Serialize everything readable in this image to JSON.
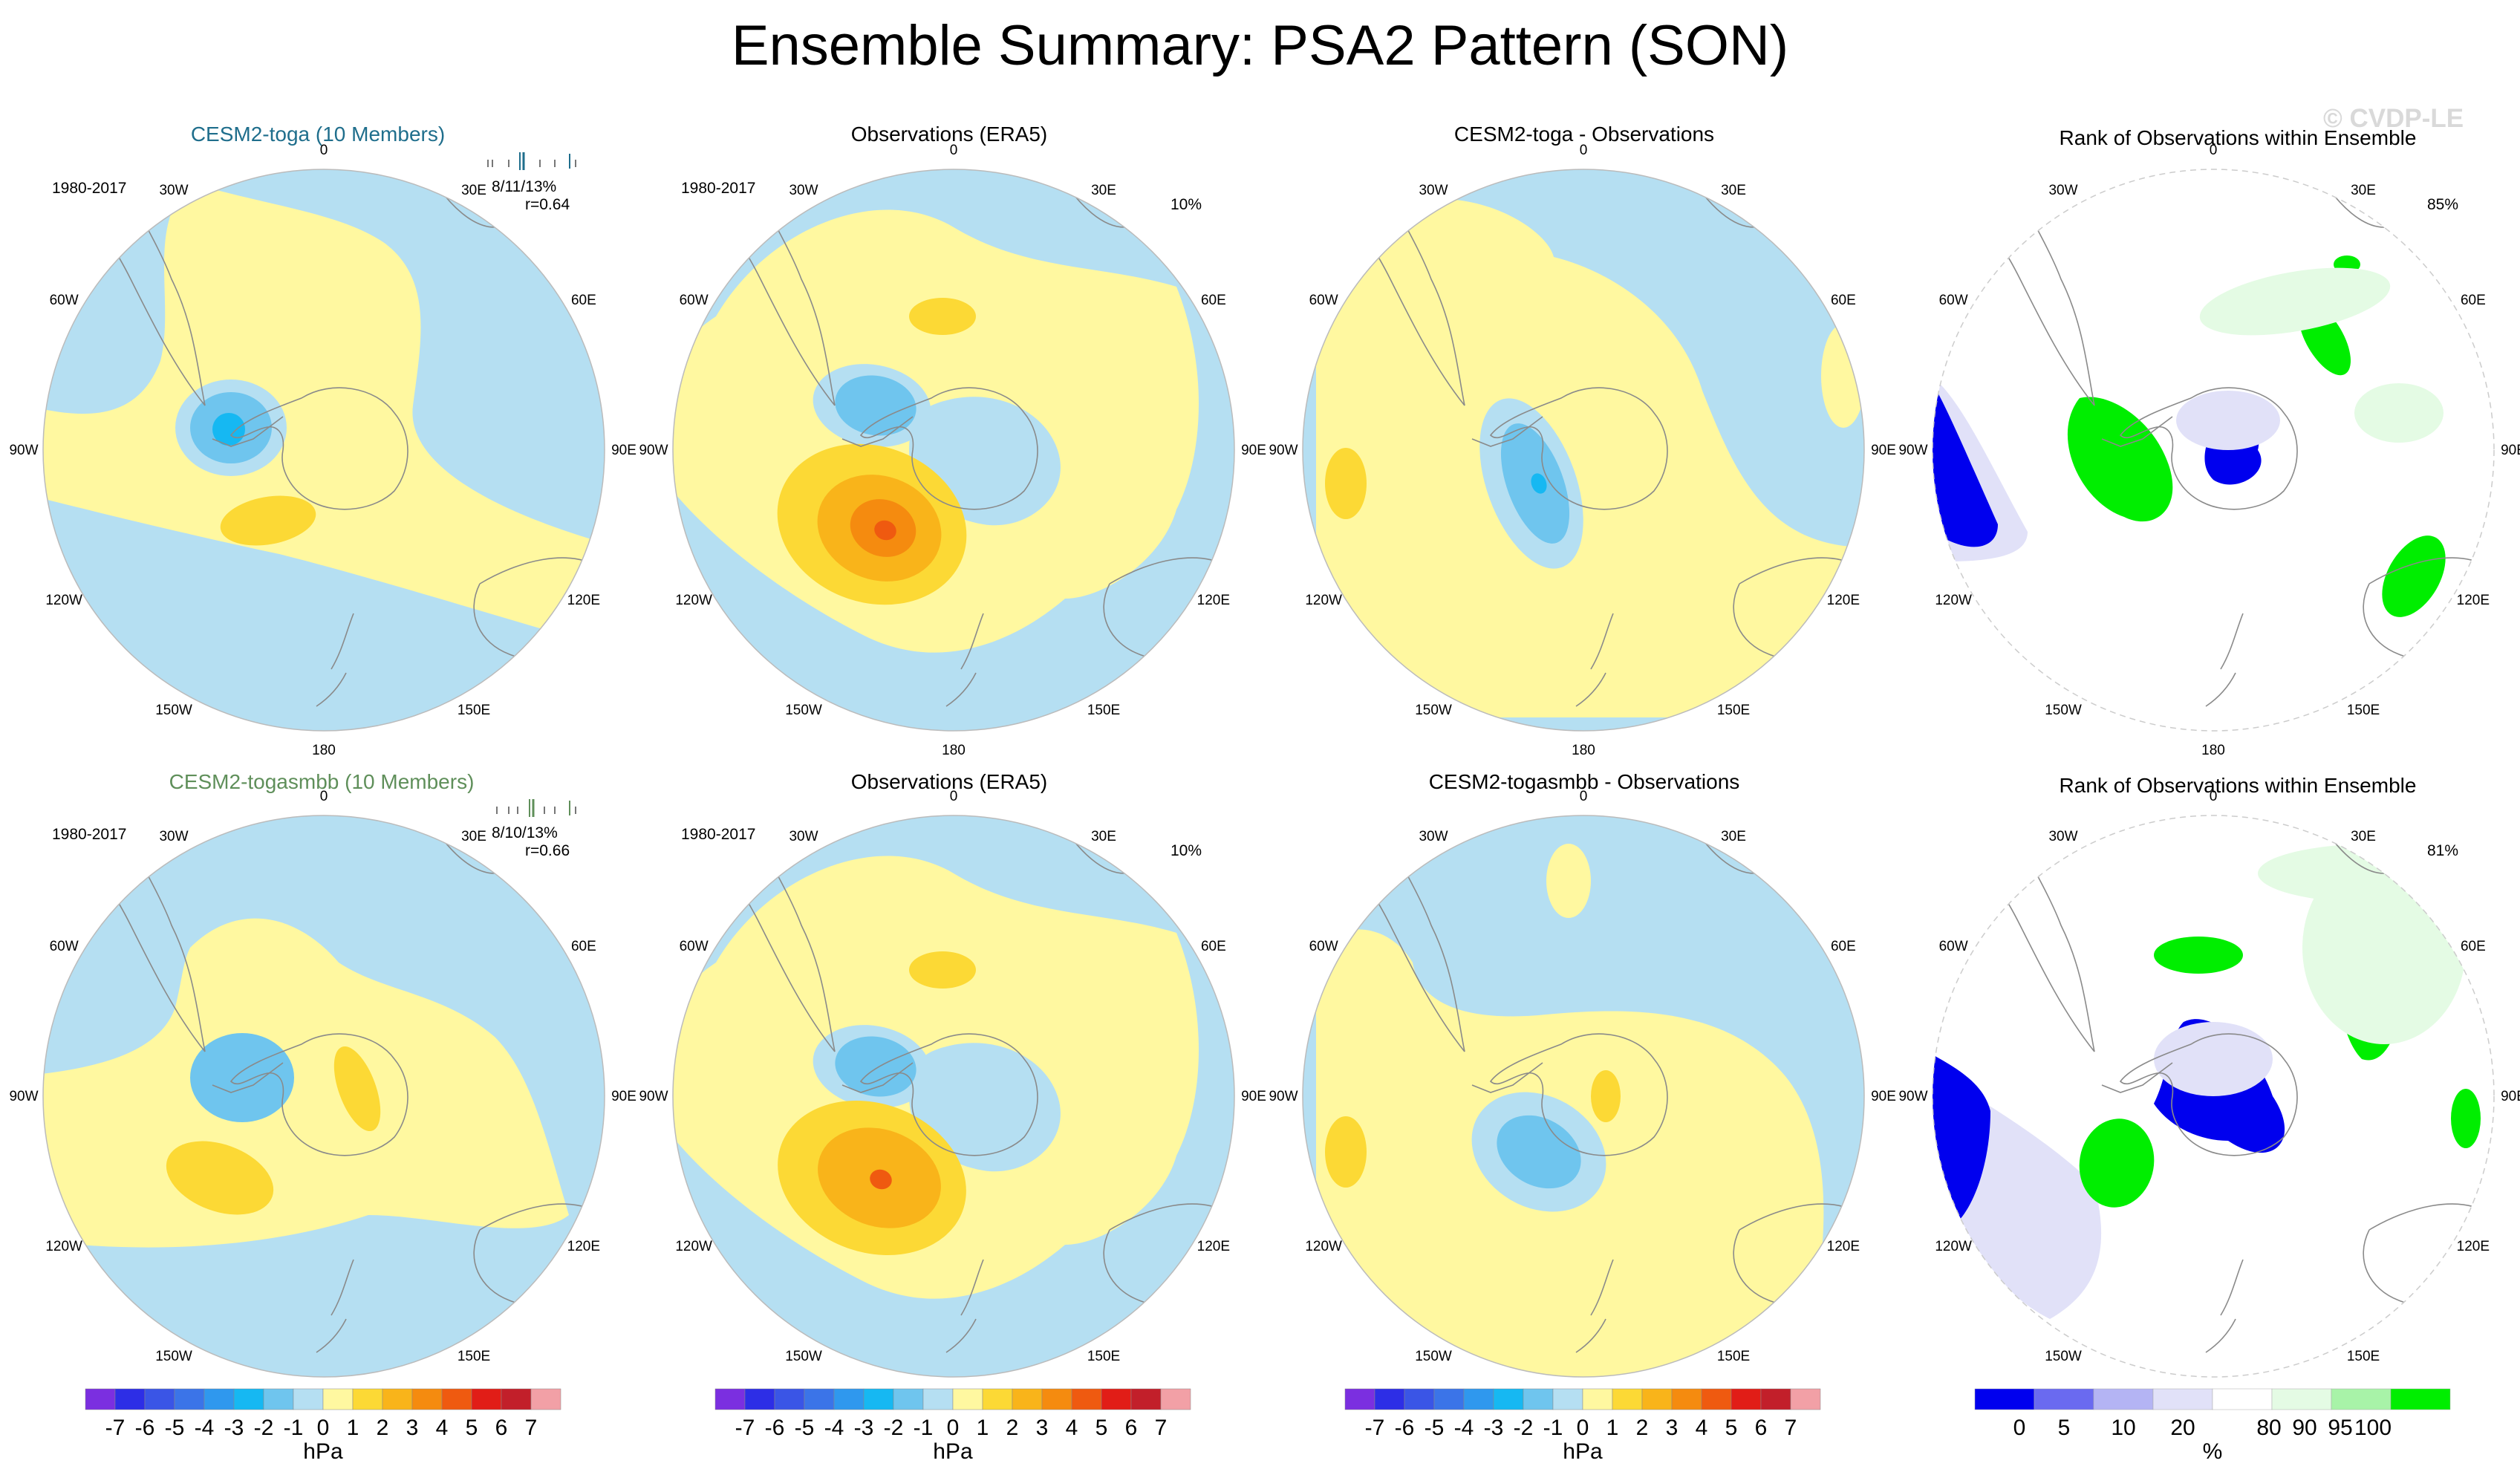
{
  "title": "Ensemble Summary: PSA2 Pattern (SON)",
  "watermark": "© CVDP-LE",
  "rows": [
    {
      "model_title": "CESM2-toga (10 Members)",
      "model_title_color": "#1f6e8c",
      "model_years": "1980-2017",
      "model_stats": "8/11/13%",
      "model_corr": "r=0.64",
      "obs_title": "Observations (ERA5)",
      "obs_years": "1980-2017",
      "obs_pct": "10%",
      "diff_title": "CESM2-toga - Observations",
      "rank_title": "Rank of Observations within Ensemble",
      "rank_pct": "85%"
    },
    {
      "model_title": "CESM2-togasmbb (10 Members)",
      "model_title_color": "#5f8f5a",
      "model_years": "1980-2017",
      "model_stats": "8/10/13%",
      "model_corr": "r=0.66",
      "obs_title": "Observations (ERA5)",
      "obs_years": "1980-2017",
      "obs_pct": "10%",
      "diff_title": "CESM2-togasmbb - Observations",
      "rank_title": "Rank of Observations within Ensemble",
      "rank_pct": "81%"
    }
  ],
  "lon_labels": [
    "0",
    "30E",
    "60E",
    "90E",
    "120E",
    "150E",
    "180",
    "150W",
    "120W",
    "90W",
    "60W",
    "30W"
  ],
  "chart_data": {
    "type": "polar-contour-map",
    "projection": "South polar stereographic",
    "variable": "Sea level pressure PSA2 pattern regression",
    "units": "hPa",
    "pressure_colorbar": {
      "labels": [
        "-7",
        "-6",
        "-5",
        "-4",
        "-3",
        "-2",
        "-1",
        "0",
        "1",
        "2",
        "3",
        "4",
        "5",
        "6",
        "7"
      ],
      "colors": [
        "#7b2fe0",
        "#2d2ee6",
        "#3a55e6",
        "#3b74e8",
        "#2f98ee",
        "#16b8f2",
        "#6fc5ee",
        "#b5dff2",
        "#fff8a0",
        "#fcd935",
        "#f9b41a",
        "#f58b0f",
        "#ef5a10",
        "#e11d17",
        "#c21f2a",
        "#f2a0a6"
      ],
      "unit_label": "hPa"
    },
    "rank_colorbar": {
      "labels": [
        "0",
        "5",
        "10",
        "20",
        "80",
        "90",
        "95",
        "100"
      ],
      "colors": [
        "#0000ee",
        "#6a6af0",
        "#b4b4f4",
        "#e1e1f8",
        "#ffffff",
        "#e4fbe4",
        "#a8f3a8",
        "#00ee00"
      ],
      "unit_label": "%"
    }
  }
}
